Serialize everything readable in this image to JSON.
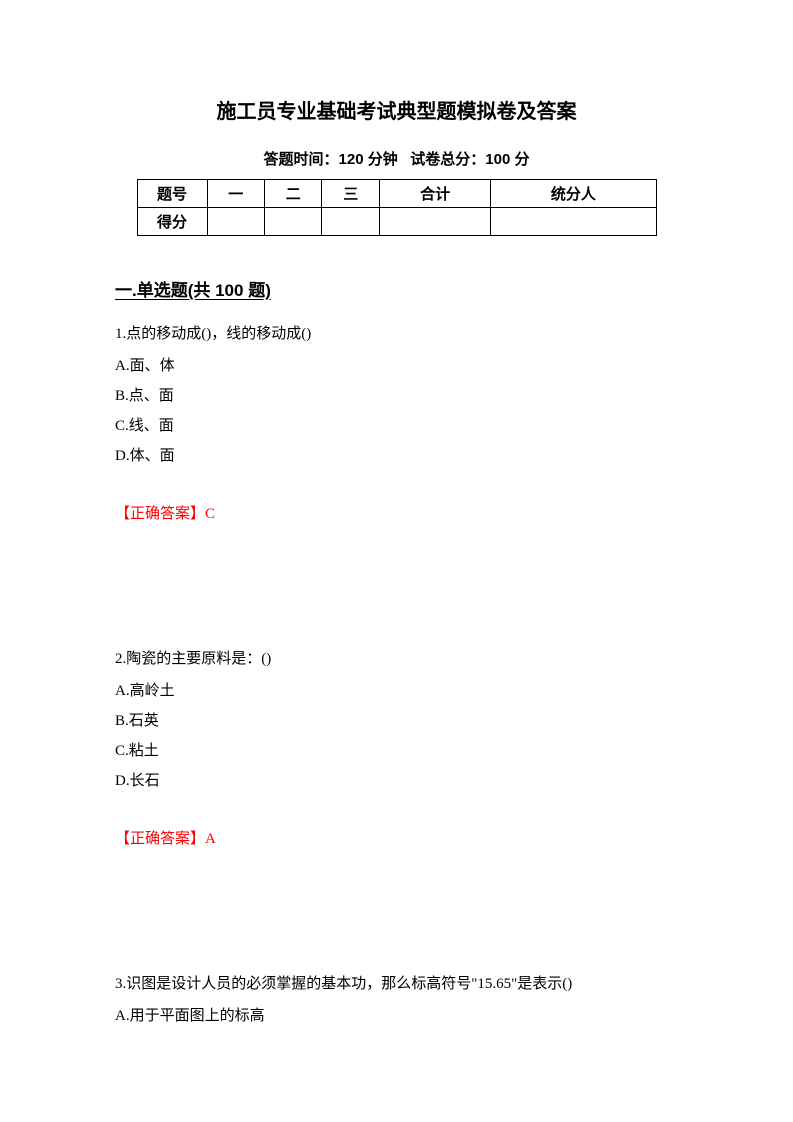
{
  "title": "施工员专业基础考试典型题模拟卷及答案",
  "subtitle_time_label": "答题时间：",
  "subtitle_time_value": "120 分钟",
  "subtitle_score_label": "试卷总分：",
  "subtitle_score_value": "100 分",
  "table": {
    "row1": [
      "题号",
      "一",
      "二",
      "三",
      "合计",
      "统分人"
    ],
    "row2": [
      "得分",
      "",
      "",
      "",
      "",
      ""
    ]
  },
  "section_heading": "一.单选题(共 100 题)",
  "questions": [
    {
      "number": "1.",
      "text": "点的移动成()，线的移动成()",
      "options": [
        "A.面、体",
        "B.点、面",
        "C.线、面",
        "D.体、面"
      ],
      "answer": "【正确答案】C"
    },
    {
      "number": "2.",
      "text": "陶瓷的主要原料是：()",
      "options": [
        "A.高岭土",
        "B.石英",
        "C.粘土",
        "D.长石"
      ],
      "answer": "【正确答案】A"
    },
    {
      "number": "3.",
      "text": "识图是设计人员的必须掌握的基本功，那么标高符号\"15.65\"是表示()",
      "options": [
        "A.用于平面图上的标高"
      ],
      "answer": ""
    }
  ]
}
